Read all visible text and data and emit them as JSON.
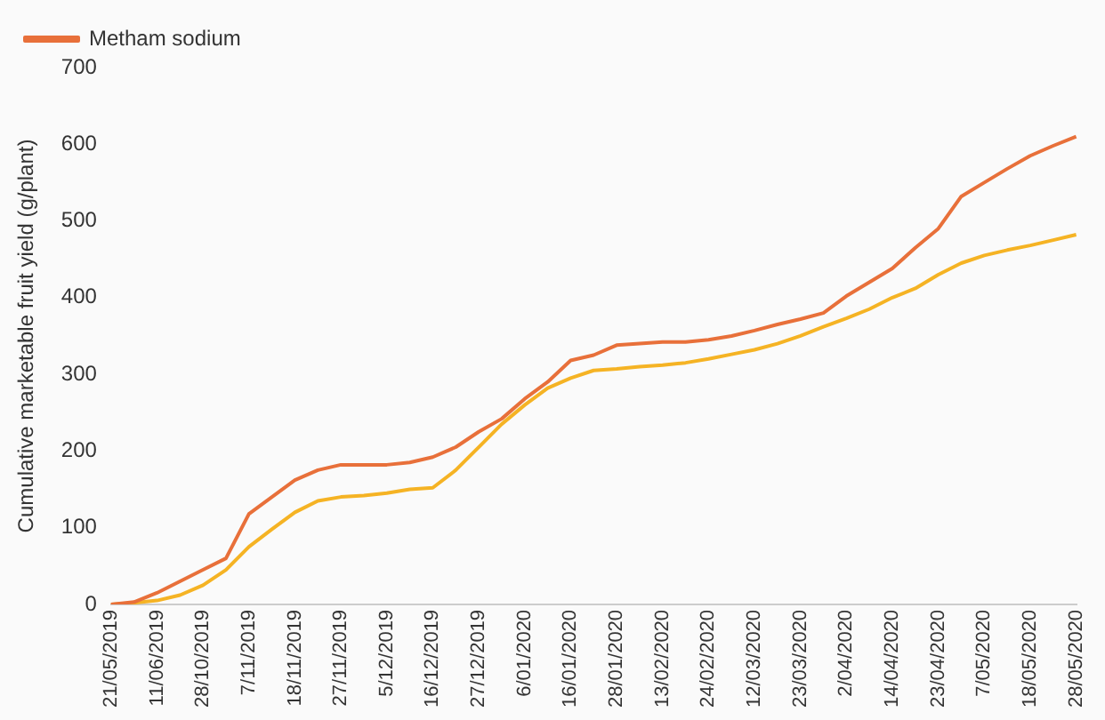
{
  "chart_data": {
    "type": "line",
    "ylabel": "Cumulative marketable fruit yield (g/plant)",
    "categories": [
      "21/05/2019",
      null,
      "11/06/2019",
      null,
      "28/10/2019",
      null,
      "7/11/2019",
      null,
      "18/11/2019",
      null,
      "27/11/2019",
      null,
      "5/12/2019",
      null,
      "16/12/2019",
      null,
      "27/12/2019",
      null,
      "6/01/2020",
      null,
      "16/01/2020",
      null,
      "28/01/2020",
      null,
      "13/02/2020",
      null,
      "24/02/2020",
      null,
      "12/03/2020",
      null,
      "23/03/2020",
      null,
      "2/04/2020",
      null,
      "14/04/2020",
      null,
      "23/04/2020",
      null,
      "7/05/2020",
      null,
      "18/05/2020",
      null,
      "28/05/2020"
    ],
    "series": [
      {
        "name": "Metham sodium",
        "color": "#e8703a",
        "values": [
          0,
          3,
          15,
          30,
          45,
          60,
          118,
          140,
          162,
          175,
          182,
          182,
          182,
          185,
          192,
          205,
          225,
          242,
          268,
          290,
          318,
          325,
          338,
          340,
          342,
          342,
          345,
          350,
          357,
          365,
          372,
          380,
          402,
          420,
          438,
          465,
          490,
          532,
          550,
          568,
          585,
          598,
          610
        ]
      },
      {
        "color": "#f5b324",
        "values": [
          0,
          2,
          5,
          12,
          25,
          45,
          75,
          98,
          120,
          135,
          140,
          142,
          145,
          150,
          152,
          175,
          205,
          235,
          260,
          282,
          295,
          305,
          307,
          310,
          312,
          315,
          320,
          326,
          332,
          340,
          350,
          362,
          373,
          385,
          400,
          412,
          430,
          445,
          455,
          462,
          468,
          475,
          482
        ]
      }
    ],
    "ylim": [
      0,
      700
    ],
    "yticks": [
      0,
      100,
      200,
      300,
      400,
      500,
      600,
      700
    ],
    "legend": "top left",
    "marker": "none",
    "line_style": "solid"
  }
}
